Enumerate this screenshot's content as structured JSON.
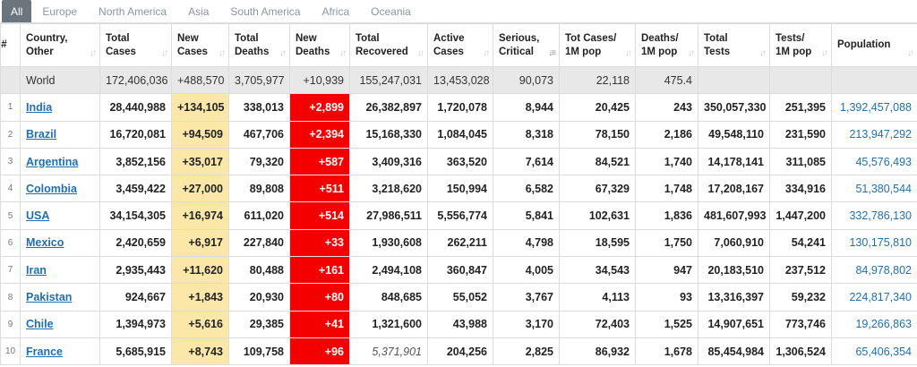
{
  "tabs": [
    "All",
    "Europe",
    "North America",
    "Asia",
    "South America",
    "Africa",
    "Oceania"
  ],
  "headers": [
    {
      "label": "#",
      "sort": ""
    },
    {
      "label": "Country, Other",
      "sort": "↓↑"
    },
    {
      "label": "Total Cases",
      "sort": "↓↑"
    },
    {
      "label": "New Cases",
      "sort": "↓↑"
    },
    {
      "label": "Total Deaths",
      "sort": "↓↑"
    },
    {
      "label": "New Deaths",
      "sort": "↓↑"
    },
    {
      "label": "Total Recovered",
      "sort": "↓↑"
    },
    {
      "label": "Active Cases",
      "sort": "↓↑"
    },
    {
      "label": "Serious, Critical",
      "sort": "↓≡"
    },
    {
      "label": "Tot Cases/ 1M pop",
      "sort": "↓↑"
    },
    {
      "label": "Deaths/ 1M pop",
      "sort": "↓↑"
    },
    {
      "label": "Total Tests",
      "sort": "↓↑"
    },
    {
      "label": "Tests/ 1M pop",
      "sort": "↓↑"
    },
    {
      "label": "Population",
      "sort": "↓↑"
    }
  ],
  "world": {
    "num": "",
    "country": "World",
    "total_cases": "172,406,036",
    "new_cases": "+488,570",
    "total_deaths": "3,705,977",
    "new_deaths": "+10,939",
    "total_recovered": "155,247,031",
    "active_cases": "13,453,028",
    "serious": "90,073",
    "cases_per_1m": "22,118",
    "deaths_per_1m": "475.4",
    "total_tests": "",
    "tests_per_1m": "",
    "population": ""
  },
  "rows": [
    {
      "num": "1",
      "country": "India",
      "total_cases": "28,440,988",
      "new_cases": "+134,105",
      "total_deaths": "338,013",
      "new_deaths": "+2,899",
      "total_recovered": "26,382,897",
      "active_cases": "1,720,078",
      "serious": "8,944",
      "cases_per_1m": "20,425",
      "deaths_per_1m": "243",
      "total_tests": "350,057,330",
      "tests_per_1m": "251,395",
      "population": "1,392,457,088"
    },
    {
      "num": "2",
      "country": "Brazil",
      "total_cases": "16,720,081",
      "new_cases": "+94,509",
      "total_deaths": "467,706",
      "new_deaths": "+2,394",
      "total_recovered": "15,168,330",
      "active_cases": "1,084,045",
      "serious": "8,318",
      "cases_per_1m": "78,150",
      "deaths_per_1m": "2,186",
      "total_tests": "49,548,110",
      "tests_per_1m": "231,590",
      "population": "213,947,292"
    },
    {
      "num": "3",
      "country": "Argentina",
      "total_cases": "3,852,156",
      "new_cases": "+35,017",
      "total_deaths": "79,320",
      "new_deaths": "+587",
      "total_recovered": "3,409,316",
      "active_cases": "363,520",
      "serious": "7,614",
      "cases_per_1m": "84,521",
      "deaths_per_1m": "1,740",
      "total_tests": "14,178,141",
      "tests_per_1m": "311,085",
      "population": "45,576,493"
    },
    {
      "num": "4",
      "country": "Colombia",
      "total_cases": "3,459,422",
      "new_cases": "+27,000",
      "total_deaths": "89,808",
      "new_deaths": "+511",
      "total_recovered": "3,218,620",
      "active_cases": "150,994",
      "serious": "6,582",
      "cases_per_1m": "67,329",
      "deaths_per_1m": "1,748",
      "total_tests": "17,208,167",
      "tests_per_1m": "334,916",
      "population": "51,380,544"
    },
    {
      "num": "5",
      "country": "USA",
      "total_cases": "34,154,305",
      "new_cases": "+16,974",
      "total_deaths": "611,020",
      "new_deaths": "+514",
      "total_recovered": "27,986,511",
      "active_cases": "5,556,774",
      "serious": "5,841",
      "cases_per_1m": "102,631",
      "deaths_per_1m": "1,836",
      "total_tests": "481,607,993",
      "tests_per_1m": "1,447,200",
      "population": "332,786,130"
    },
    {
      "num": "6",
      "country": "Mexico",
      "total_cases": "2,420,659",
      "new_cases": "+6,917",
      "total_deaths": "227,840",
      "new_deaths": "+33",
      "total_recovered": "1,930,608",
      "active_cases": "262,211",
      "serious": "4,798",
      "cases_per_1m": "18,595",
      "deaths_per_1m": "1,750",
      "total_tests": "7,060,910",
      "tests_per_1m": "54,241",
      "population": "130,175,810"
    },
    {
      "num": "7",
      "country": "Iran",
      "total_cases": "2,935,443",
      "new_cases": "+11,620",
      "total_deaths": "80,488",
      "new_deaths": "+161",
      "total_recovered": "2,494,108",
      "active_cases": "360,847",
      "serious": "4,005",
      "cases_per_1m": "34,543",
      "deaths_per_1m": "947",
      "total_tests": "20,183,510",
      "tests_per_1m": "237,512",
      "population": "84,978,802"
    },
    {
      "num": "8",
      "country": "Pakistan",
      "total_cases": "924,667",
      "new_cases": "+1,843",
      "total_deaths": "20,930",
      "new_deaths": "+80",
      "total_recovered": "848,685",
      "active_cases": "55,052",
      "serious": "3,767",
      "cases_per_1m": "4,113",
      "deaths_per_1m": "93",
      "total_tests": "13,316,397",
      "tests_per_1m": "59,232",
      "population": "224,817,340"
    },
    {
      "num": "9",
      "country": "Chile",
      "total_cases": "1,394,973",
      "new_cases": "+5,616",
      "total_deaths": "29,385",
      "new_deaths": "+41",
      "total_recovered": "1,321,600",
      "active_cases": "43,988",
      "serious": "3,170",
      "cases_per_1m": "72,403",
      "deaths_per_1m": "1,525",
      "total_tests": "14,907,651",
      "tests_per_1m": "773,746",
      "population": "19,266,863"
    },
    {
      "num": "10",
      "country": "France",
      "total_cases": "5,685,915",
      "new_cases": "+8,743",
      "total_deaths": "109,758",
      "new_deaths": "+96",
      "total_recovered": "5,371,901",
      "recovered_italic": true,
      "active_cases": "204,256",
      "serious": "2,825",
      "cases_per_1m": "86,932",
      "deaths_per_1m": "1,678",
      "total_tests": "85,454,984",
      "tests_per_1m": "1,306,524",
      "population": "65,406,354"
    }
  ],
  "colors": {
    "new_cases_bg": "#fbe7a8",
    "new_deaths_bg": "#f40000",
    "link": "#1f6fb2",
    "world_bg": "#e8e8e8",
    "tab_active_bg": "#6c757d"
  }
}
